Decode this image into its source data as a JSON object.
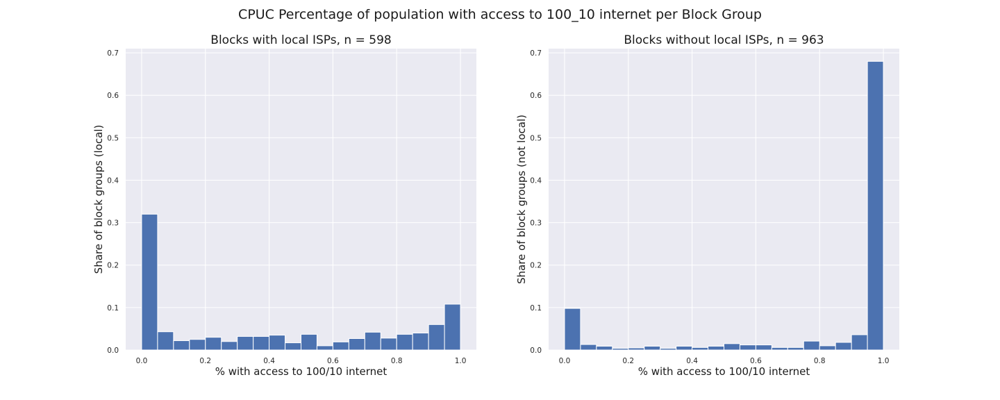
{
  "suptitle": "CPUC Percentage of population with access to 100_10 internet per Block Group",
  "chart_data": [
    {
      "type": "bar",
      "title": "Blocks with local ISPs, n = 598",
      "xlabel": "% with access to 100/10 internet",
      "ylabel": "Share of block groups (local)",
      "xlim": [
        -0.05,
        1.05
      ],
      "ylim": [
        0,
        0.71
      ],
      "xticks": [
        0.0,
        0.2,
        0.4,
        0.6,
        0.8,
        1.0
      ],
      "xtick_labels": [
        "0.0",
        "0.2",
        "0.4",
        "0.6",
        "0.8",
        "1.0"
      ],
      "yticks": [
        0.0,
        0.1,
        0.2,
        0.3,
        0.4,
        0.5,
        0.6,
        0.7
      ],
      "ytick_labels": [
        "0.0",
        "0.1",
        "0.2",
        "0.3",
        "0.4",
        "0.5",
        "0.6",
        "0.7"
      ],
      "bin_edges": [
        0.0,
        0.05,
        0.1,
        0.15,
        0.2,
        0.25,
        0.3,
        0.35,
        0.4,
        0.45,
        0.5,
        0.55,
        0.6,
        0.65,
        0.7,
        0.75,
        0.8,
        0.85,
        0.9,
        0.95,
        1.0
      ],
      "values": [
        0.32,
        0.043,
        0.022,
        0.025,
        0.03,
        0.02,
        0.032,
        0.032,
        0.035,
        0.017,
        0.037,
        0.01,
        0.019,
        0.027,
        0.042,
        0.028,
        0.037,
        0.04,
        0.06,
        0.108
      ],
      "bar_color": "#4c72b0",
      "grid": true
    },
    {
      "type": "bar",
      "title": "Blocks without local ISPs, n = 963",
      "xlabel": "% with access to 100/10 internet",
      "ylabel": "Share of block groups (not local)",
      "xlim": [
        -0.05,
        1.05
      ],
      "ylim": [
        0,
        0.71
      ],
      "xticks": [
        0.0,
        0.2,
        0.4,
        0.6,
        0.8,
        1.0
      ],
      "xtick_labels": [
        "0.0",
        "0.2",
        "0.4",
        "0.6",
        "0.8",
        "1.0"
      ],
      "yticks": [
        0.0,
        0.1,
        0.2,
        0.3,
        0.4,
        0.5,
        0.6,
        0.7
      ],
      "ytick_labels": [
        "0.0",
        "0.1",
        "0.2",
        "0.3",
        "0.4",
        "0.5",
        "0.6",
        "0.7"
      ],
      "bin_edges": [
        0.0,
        0.05,
        0.1,
        0.15,
        0.2,
        0.25,
        0.3,
        0.35,
        0.4,
        0.45,
        0.5,
        0.55,
        0.6,
        0.65,
        0.7,
        0.75,
        0.8,
        0.85,
        0.9,
        0.95,
        1.0
      ],
      "values": [
        0.098,
        0.013,
        0.009,
        0.004,
        0.005,
        0.009,
        0.004,
        0.009,
        0.006,
        0.009,
        0.015,
        0.012,
        0.012,
        0.006,
        0.006,
        0.021,
        0.01,
        0.018,
        0.036,
        0.68
      ],
      "bar_color": "#4c72b0",
      "grid": true
    }
  ]
}
